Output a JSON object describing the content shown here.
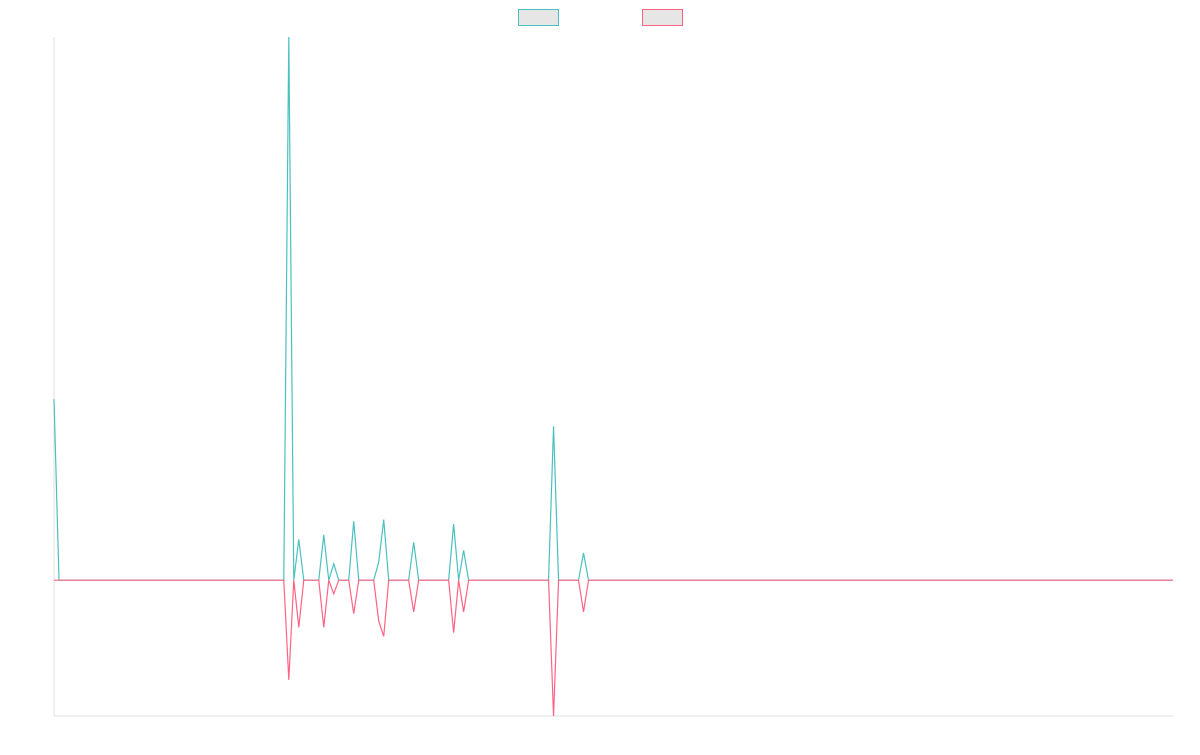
{
  "chart_data": {
    "type": "line",
    "title": "",
    "xlabel": "",
    "ylabel": "",
    "x_tick_labels": [],
    "y_tick_labels": [],
    "grid": false,
    "legend_position": "top",
    "ylim": [
      -1.5,
      6
    ],
    "n_points": 225,
    "series": [
      {
        "color": "#4bc0c0",
        "legend_fill": "#e6e6e6",
        "points": [
          [
            0,
            2
          ],
          [
            1,
            0
          ],
          [
            46,
            0
          ],
          [
            47,
            6
          ],
          [
            48,
            0
          ],
          [
            49,
            0.45
          ],
          [
            50,
            0
          ],
          [
            53,
            0
          ],
          [
            54,
            0.5
          ],
          [
            55,
            0
          ],
          [
            56,
            0.18
          ],
          [
            57,
            0
          ],
          [
            59,
            0
          ],
          [
            60,
            0.65
          ],
          [
            61,
            0
          ],
          [
            64,
            0
          ],
          [
            65,
            0.2
          ],
          [
            66,
            0.67
          ],
          [
            67,
            0
          ],
          [
            71,
            0
          ],
          [
            72,
            0.42
          ],
          [
            73,
            0
          ],
          [
            79,
            0
          ],
          [
            80,
            0.62
          ],
          [
            81,
            0
          ],
          [
            82,
            0.33
          ],
          [
            83,
            0
          ],
          [
            99,
            0
          ],
          [
            100,
            1.7
          ],
          [
            101,
            0
          ],
          [
            105,
            0
          ],
          [
            106,
            0.3
          ],
          [
            107,
            0
          ],
          [
            224,
            0
          ]
        ]
      },
      {
        "color": "#ff6384",
        "legend_fill": "#e6e6e6",
        "points": [
          [
            0,
            0
          ],
          [
            1,
            0
          ],
          [
            46,
            0
          ],
          [
            47,
            -1.1
          ],
          [
            48,
            0
          ],
          [
            49,
            -0.52
          ],
          [
            50,
            0
          ],
          [
            53,
            0
          ],
          [
            54,
            -0.52
          ],
          [
            55,
            0
          ],
          [
            56,
            -0.15
          ],
          [
            57,
            0
          ],
          [
            59,
            0
          ],
          [
            60,
            -0.37
          ],
          [
            61,
            0
          ],
          [
            64,
            0
          ],
          [
            65,
            -0.45
          ],
          [
            66,
            -0.62
          ],
          [
            67,
            0
          ],
          [
            71,
            0
          ],
          [
            72,
            -0.35
          ],
          [
            73,
            0
          ],
          [
            79,
            0
          ],
          [
            80,
            -0.58
          ],
          [
            81,
            0
          ],
          [
            82,
            -0.35
          ],
          [
            83,
            0
          ],
          [
            99,
            0
          ],
          [
            100,
            -1.5
          ],
          [
            101,
            0
          ],
          [
            105,
            0
          ],
          [
            106,
            -0.35
          ],
          [
            107,
            0
          ],
          [
            224,
            0
          ]
        ]
      }
    ]
  },
  "colors": {
    "axis": "#e0e0e0",
    "background": "#ffffff"
  }
}
